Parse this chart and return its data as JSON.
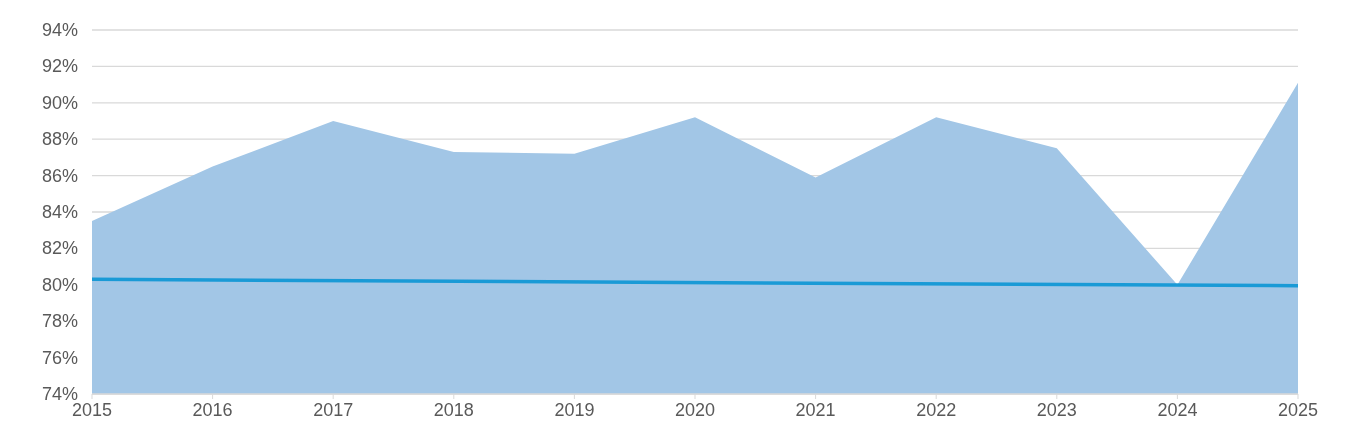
{
  "chart_data": {
    "type": "area",
    "x": [
      2015,
      2016,
      2017,
      2018,
      2019,
      2020,
      2021,
      2022,
      2023,
      2024,
      2025
    ],
    "series": [
      {
        "color": "#a2c6e6",
        "values": [
          83.5,
          86.5,
          89.0,
          87.3,
          87.2,
          89.2,
          85.9,
          89.2,
          87.5,
          80.0,
          91.1
        ]
      },
      {
        "type": "line",
        "color": "#1a9ad6",
        "x": [
          2015,
          2025
        ],
        "values": [
          80.3,
          79.95
        ]
      }
    ],
    "xlim": [
      2015,
      2025
    ],
    "xticks": [
      2015,
      2016,
      2017,
      2018,
      2019,
      2020,
      2021,
      2022,
      2023,
      2024,
      2025
    ],
    "ylim": [
      74,
      94
    ],
    "yticks": [
      {
        "value": 74,
        "label": "74%"
      },
      {
        "value": 76,
        "label": "76%"
      },
      {
        "value": 78,
        "label": "78%"
      },
      {
        "value": 80,
        "label": "80%"
      },
      {
        "value": 82,
        "label": "82%"
      },
      {
        "value": 84,
        "label": "84%"
      },
      {
        "value": 86,
        "label": "86%"
      },
      {
        "value": 88,
        "label": "88%"
      },
      {
        "value": 90,
        "label": "90%"
      },
      {
        "value": 92,
        "label": "92%"
      },
      {
        "value": 94,
        "label": "94%"
      }
    ],
    "grid": "y"
  }
}
